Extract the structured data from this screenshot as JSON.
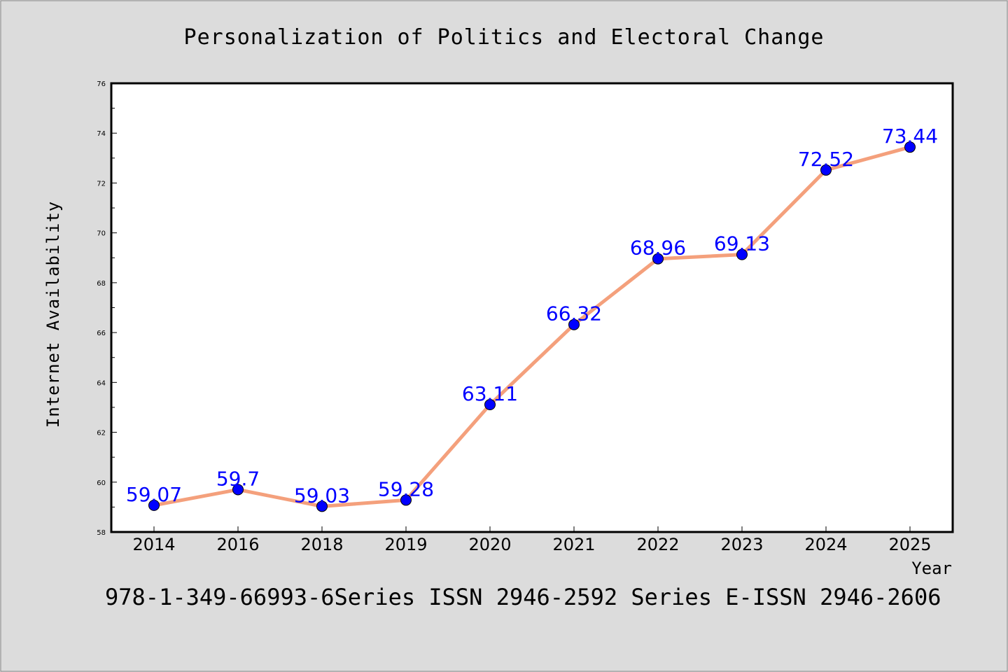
{
  "chart_data": {
    "type": "line",
    "title": "Personalization of Politics and Electoral Change",
    "xlabel": "Year",
    "ylabel": "Internet Availability",
    "categories": [
      "2014",
      "2016",
      "2018",
      "2019",
      "2020",
      "2021",
      "2022",
      "2023",
      "2024",
      "2025"
    ],
    "series": [
      {
        "values": [
          59.07,
          59.7,
          59.03,
          59.28,
          63.11,
          66.32,
          68.96,
          69.13,
          72.52,
          73.44
        ],
        "labels": [
          "59.07",
          "59.7",
          "59.03",
          "59.28",
          "63.11",
          "66.32",
          "68.96",
          "69.13",
          "72.52",
          "73.44"
        ],
        "line_color": "#f4a07c",
        "marker_color": "#0000ff",
        "label_color": "#0000ff"
      }
    ],
    "ylim": [
      58,
      76
    ],
    "yticks": [
      "58",
      "60",
      "62",
      "64",
      "66",
      "68",
      "70",
      "72",
      "74",
      "76"
    ],
    "grid": false,
    "legend": "none",
    "footer": "978-1-349-66993-6Series ISSN 2946-2592 Series E-ISSN 2946-2606"
  }
}
